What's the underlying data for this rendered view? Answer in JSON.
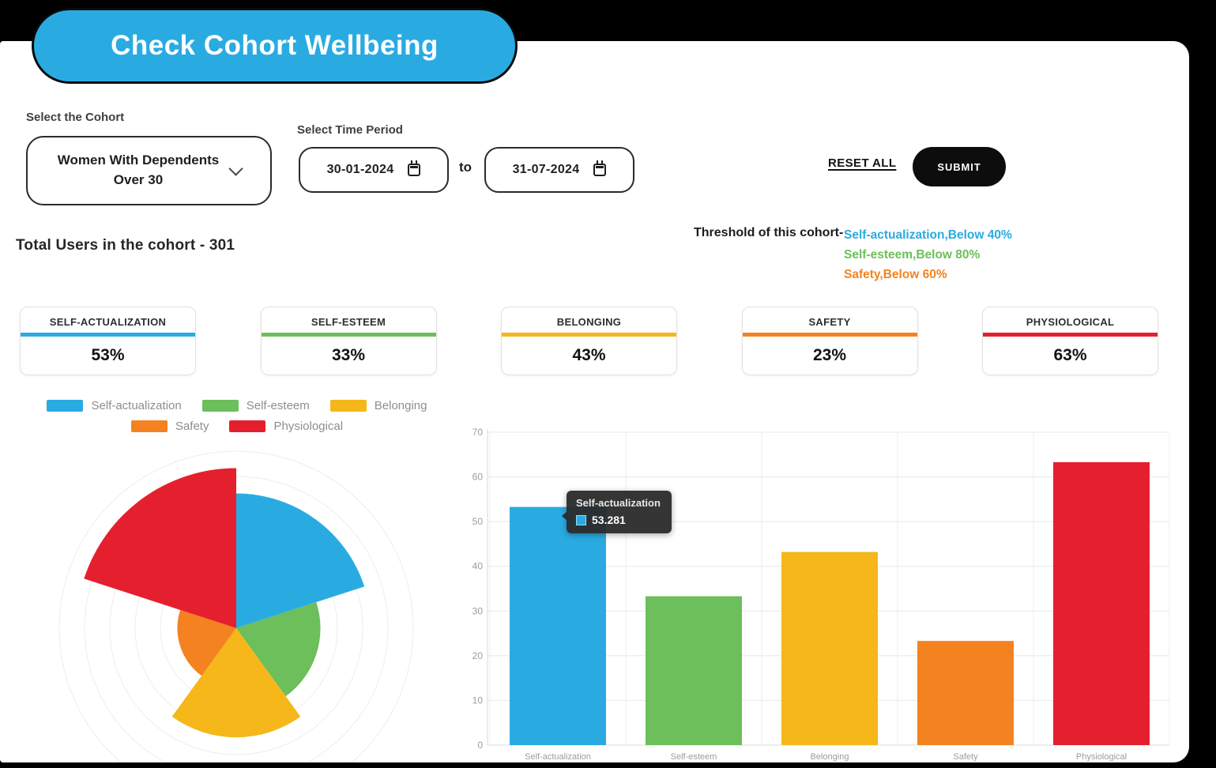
{
  "page": {
    "badge_title": "Check Cohort Wellbeing",
    "accent_blue": "#29ABE2"
  },
  "filters": {
    "cohort_label": "Select the Cohort",
    "cohort_value": "Women With Dependents Over 30",
    "time_period_label": "Select Time Period",
    "date_from": "30-01-2024",
    "date_to": "31-07-2024",
    "to_text": "to",
    "reset_label": "RESET ALL",
    "submit_label": "SUBMIT"
  },
  "summary": {
    "total_users_label": "Total Users in the cohort - ",
    "total_users_value": "301",
    "threshold_label": "Threshold of this cohort-",
    "thresholds": [
      {
        "text": "Self-actualization,Below 40%",
        "color": "#29ABE2"
      },
      {
        "text": "Self-esteem,Below 80%",
        "color": "#6CBF5A"
      },
      {
        "text": "Safety,Below 60%",
        "color": "#F58220"
      }
    ]
  },
  "metric_cards": [
    {
      "label": "SELF-ACTUALIZATION",
      "value": "53%",
      "color": "#29ABE2"
    },
    {
      "label": "SELF-ESTEEM",
      "value": "33%",
      "color": "#6CBF5A"
    },
    {
      "label": "BELONGING",
      "value": "43%",
      "color": "#F5B719"
    },
    {
      "label": "SAFETY",
      "value": "23%",
      "color": "#F58220"
    },
    {
      "label": "PHYSIOLOGICAL",
      "value": "63%",
      "color": "#E5202E"
    }
  ],
  "chart_data": [
    {
      "type": "polar-area",
      "categories": [
        "Self-actualization",
        "Self-esteem",
        "Belonging",
        "Safety",
        "Physiological"
      ],
      "values": [
        53.281,
        33.3,
        43.2,
        23.3,
        63.3
      ],
      "colors": [
        "#29ABE2",
        "#6CBF5A",
        "#F5B719",
        "#F58220",
        "#E5202E"
      ],
      "rlim": [
        0,
        70
      ],
      "grid": true,
      "legend_position": "top",
      "start_angle_deg": -90,
      "sector_span_deg": 72
    },
    {
      "type": "bar",
      "categories": [
        "Self-actualization",
        "Self-esteem",
        "Belonging",
        "Safety",
        "Physiological"
      ],
      "values": [
        53.281,
        33.3,
        43.2,
        23.3,
        63.3
      ],
      "colors": [
        "#29ABE2",
        "#6CBF5A",
        "#F5B719",
        "#F58220",
        "#E5202E"
      ],
      "title": "",
      "xlabel": "",
      "ylabel": "",
      "ylim": [
        0,
        70
      ],
      "yticks": [
        0,
        10,
        20,
        30,
        40,
        50,
        60,
        70
      ],
      "grid": true,
      "tooltip": {
        "title": "Self-actualization",
        "value": "53.281",
        "color": "#29ABE2"
      }
    }
  ]
}
